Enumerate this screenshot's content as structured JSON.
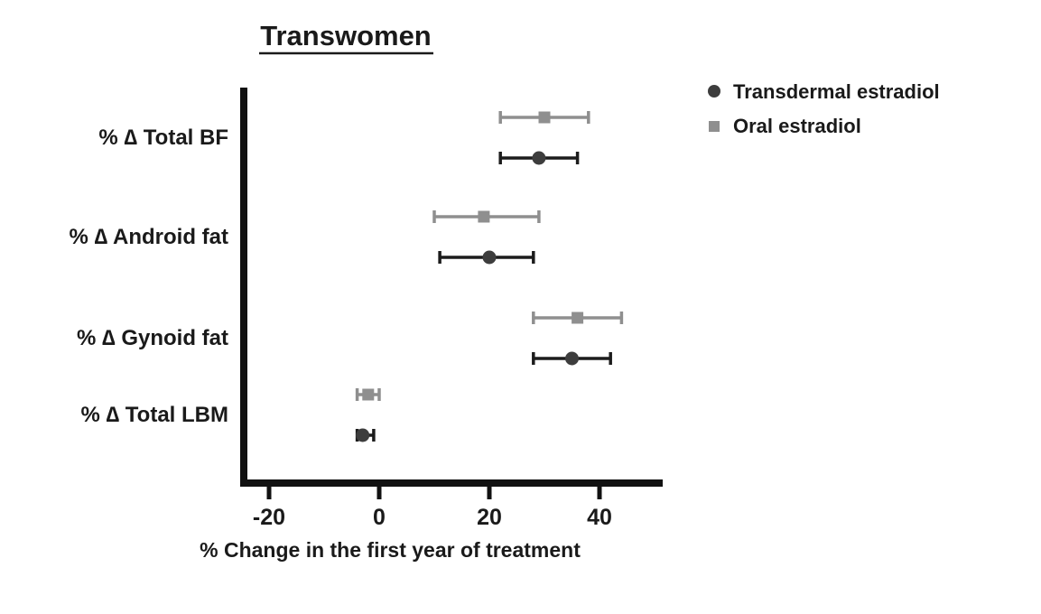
{
  "title": "Transwomen",
  "xlabel": "% Change in the first year of treatment",
  "chart_data": {
    "type": "scatter",
    "subtype": "forest-plot-horizontal",
    "title": "Transwomen",
    "xlabel": "% Change in the first year of treatment",
    "categories": [
      "% ∆ Total BF",
      "% ∆ Android fat",
      "% ∆ Gynoid fat",
      "% ∆ Total LBM"
    ],
    "x_ticks": [
      -20,
      0,
      20,
      40
    ],
    "xlim": [
      -25,
      51
    ],
    "grid": false,
    "legend_position": "top-right",
    "series": [
      {
        "name": "Transdermal estradiol",
        "marker": "circle",
        "color": "#3d3d3d",
        "error_color": "#1c1c1c",
        "values": [
          29,
          20,
          35,
          -3
        ],
        "ci_low": [
          22,
          11,
          28,
          -4
        ],
        "ci_high": [
          36,
          28,
          42,
          -1
        ]
      },
      {
        "name": "Oral estradiol",
        "marker": "square",
        "color": "#8f8f8f",
        "error_color": "#8f8f8f",
        "values": [
          30,
          19,
          36,
          -2
        ],
        "ci_low": [
          22,
          10,
          28,
          -4
        ],
        "ci_high": [
          38,
          29,
          44,
          0
        ]
      }
    ]
  }
}
